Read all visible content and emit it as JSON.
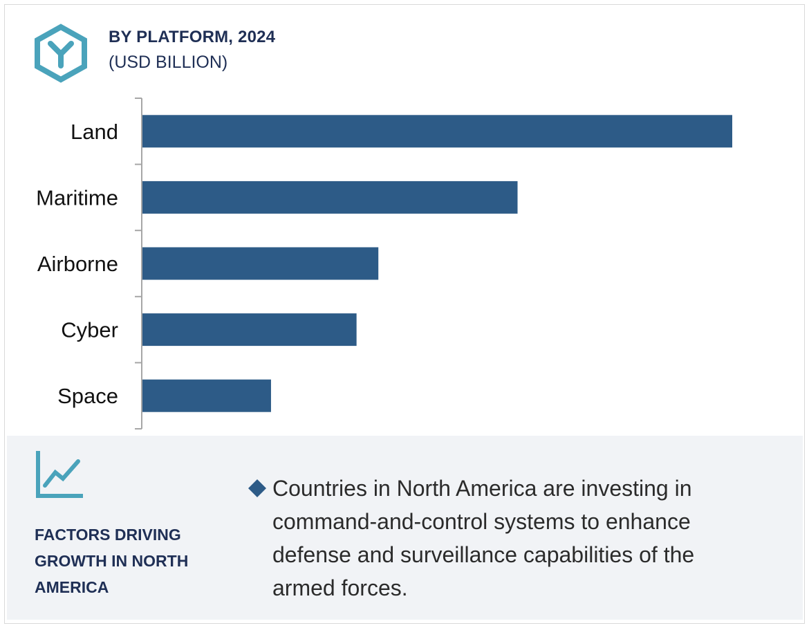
{
  "header": {
    "title": "BY PLATFORM, 2024",
    "subtitle": "(USD BILLION)",
    "icon": "hexagon-y-icon"
  },
  "chart_data": {
    "type": "bar",
    "orientation": "horizontal",
    "categories": [
      "Land",
      "Maritime",
      "Airborne",
      "Cyber",
      "Space"
    ],
    "values": [
      100,
      63.6,
      40,
      36.3,
      21.8
    ],
    "title": "BY PLATFORM, 2024",
    "subtitle": "(USD BILLION)",
    "xlabel": "",
    "ylabel": "",
    "xlim": [
      0,
      100
    ],
    "legend": "none",
    "grid": false,
    "bar_color": "#2d5b87"
  },
  "factors": {
    "title": "FACTORS DRIVING GROWTH IN NORTH AMERICA",
    "icon": "trend-chart-icon",
    "bullet_icon": "diamond-icon",
    "bullet": "Countries in North America are investing in command-and-control systems to enhance defense and surveillance capabilities of the armed forces."
  },
  "colors": {
    "accent": "#4aa3bb",
    "title": "#1f2f55",
    "bar": "#2d5b87",
    "panel": "#f1f3f6"
  }
}
